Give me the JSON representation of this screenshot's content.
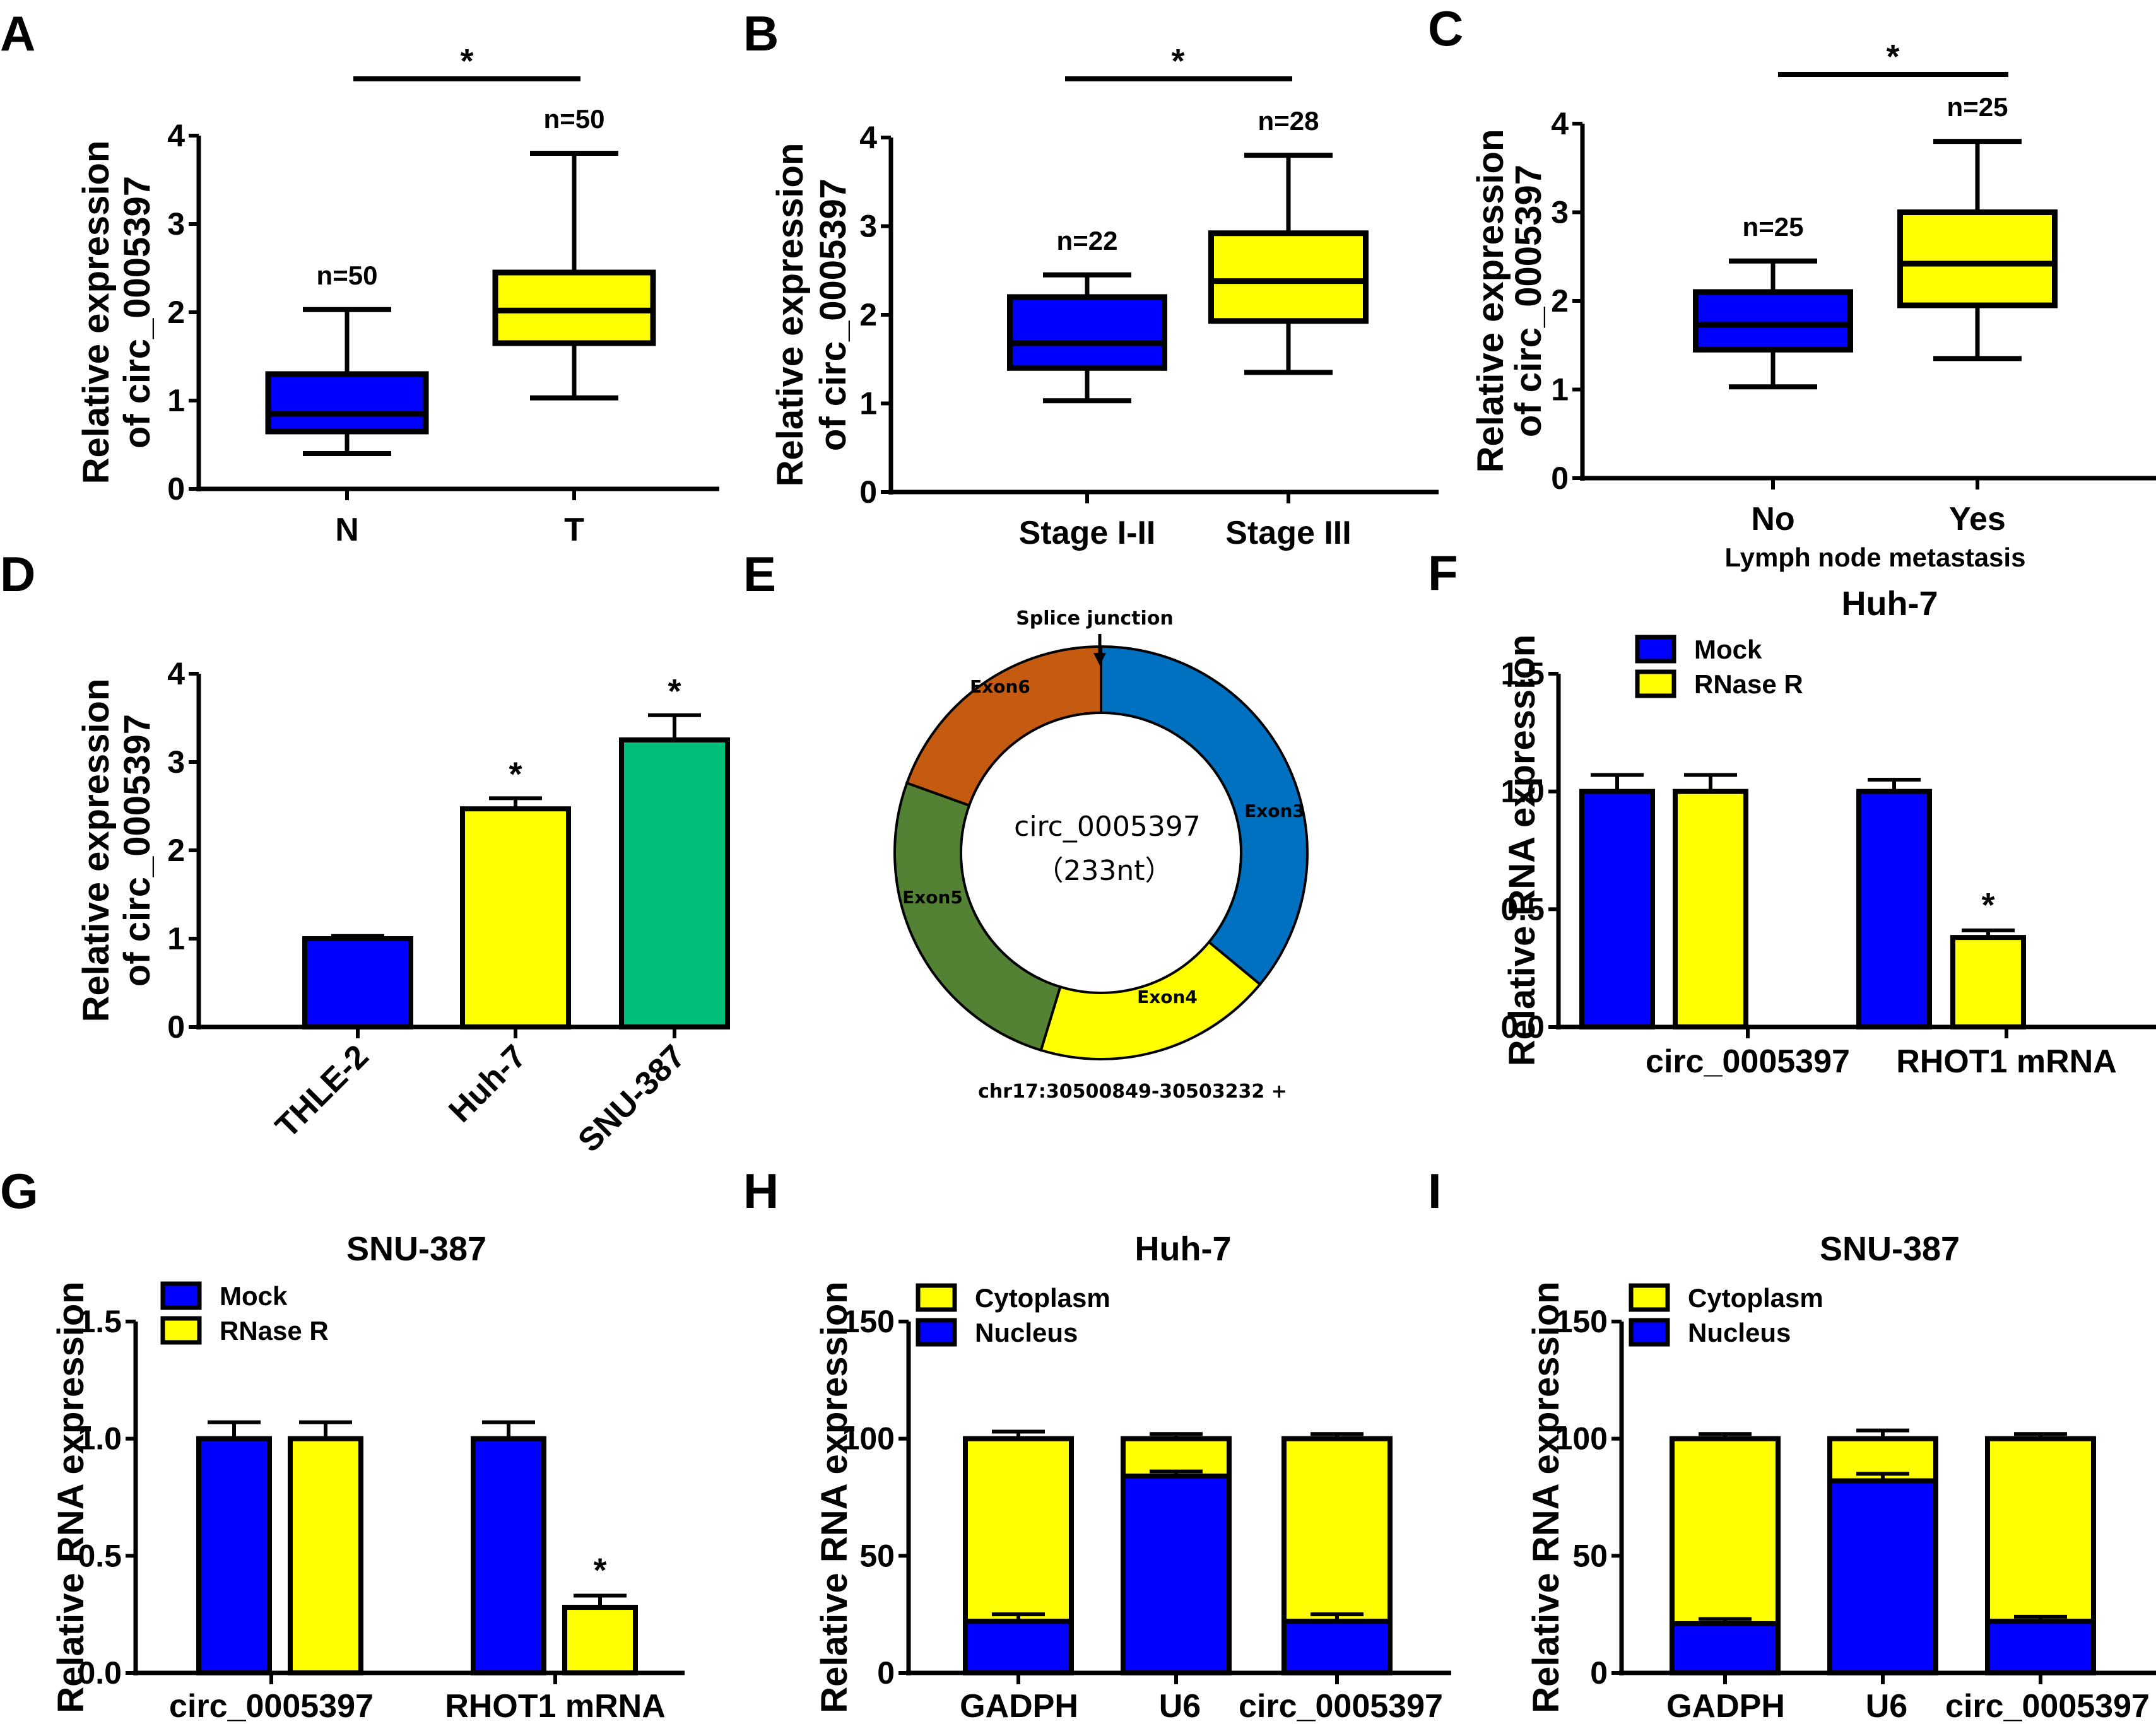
{
  "colors": {
    "blue": "#0000ff",
    "yellow": "#ffff00",
    "green": "#00bf78",
    "exon3": "#0070c0",
    "exon4": "#ffff00",
    "exon5": "#548235",
    "exon6": "#c55a11"
  },
  "chart_data": [
    {
      "panel": "A",
      "type": "box",
      "ylabel": [
        "Relative expression",
        "of circ_0005397"
      ],
      "ylim": [
        0,
        4
      ],
      "yticks": [
        "0",
        "1",
        "2",
        "3",
        "4"
      ],
      "categories": [
        "N",
        "T"
      ],
      "boxes": [
        {
          "label": "N",
          "n": "n=50",
          "color": "blue",
          "min": 0.4,
          "q1": 0.65,
          "median": 0.85,
          "q3": 1.3,
          "max": 2.03
        },
        {
          "label": "T",
          "n": "n=50",
          "color": "yellow",
          "min": 1.03,
          "q1": 1.65,
          "median": 2.02,
          "q3": 2.45,
          "max": 3.8
        }
      ],
      "significance": "*",
      "xlabel": ""
    },
    {
      "panel": "B",
      "type": "box",
      "ylabel": [
        "Relative expression",
        "of circ_0005397"
      ],
      "ylim": [
        0,
        4
      ],
      "yticks": [
        "0",
        "1",
        "2",
        "3",
        "4"
      ],
      "categories": [
        "Stage I-II",
        "Stage III"
      ],
      "boxes": [
        {
          "label": "Stage I-II",
          "n": "n=22",
          "color": "blue",
          "min": 1.03,
          "q1": 1.4,
          "median": 1.68,
          "q3": 2.2,
          "max": 2.45
        },
        {
          "label": "Stage III",
          "n": "n=28",
          "color": "yellow",
          "min": 1.35,
          "q1": 1.93,
          "median": 2.38,
          "q3": 2.92,
          "max": 3.8
        }
      ],
      "significance": "*",
      "xlabel": ""
    },
    {
      "panel": "C",
      "type": "box",
      "ylabel": [
        "Relative expression",
        "of circ_0005397"
      ],
      "ylim": [
        0,
        4
      ],
      "yticks": [
        "0",
        "1",
        "2",
        "3",
        "4"
      ],
      "categories": [
        "No",
        "Yes"
      ],
      "boxes": [
        {
          "label": "No",
          "n": "n=25",
          "color": "blue",
          "min": 1.03,
          "q1": 1.45,
          "median": 1.73,
          "q3": 2.1,
          "max": 2.45
        },
        {
          "label": "Yes",
          "n": "n=25",
          "color": "yellow",
          "min": 1.35,
          "q1": 1.95,
          "median": 2.42,
          "q3": 3.0,
          "max": 3.8
        }
      ],
      "significance": "*",
      "xlabel": "Lymph node metastasis"
    },
    {
      "panel": "D",
      "type": "bar",
      "ylabel": [
        "Relative expression",
        "of circ_0005397"
      ],
      "ylim": [
        0,
        4
      ],
      "yticks": [
        "0",
        "1",
        "2",
        "3",
        "4"
      ],
      "categories": [
        "THLE-2",
        "Huh-7",
        "SNU-387"
      ],
      "values": [
        1.0,
        2.47,
        3.25
      ],
      "errors": [
        0.03,
        0.12,
        0.28
      ],
      "colors": [
        "blue",
        "yellow",
        "green"
      ],
      "stars": [
        "",
        "*",
        "*"
      ]
    },
    {
      "panel": "E",
      "type": "pie",
      "subtype": "donut",
      "center_label": "circ_0005397",
      "center_sublabel": "（233nt）",
      "top_annotation": "Splice junction",
      "bottom_annotation": "chr17:30500849-30503232 +",
      "slices": [
        {
          "label": "Exon3",
          "fraction": 0.36,
          "color": "exon3"
        },
        {
          "label": "Exon4",
          "fraction": 0.187,
          "color": "exon4"
        },
        {
          "label": "Exon5",
          "fraction": 0.258,
          "color": "exon5"
        },
        {
          "label": "Exon6",
          "fraction": 0.195,
          "color": "exon6"
        }
      ]
    },
    {
      "panel": "F",
      "type": "bar",
      "title": "Huh-7",
      "ylabel": [
        "Relative RNA expression"
      ],
      "ylim": [
        0,
        1.5
      ],
      "yticks": [
        "0.0",
        "0.5",
        "1.0",
        "1.5"
      ],
      "categories": [
        "circ_0005397",
        "RHOT1 mRNA"
      ],
      "legend": [
        {
          "name": "Mock",
          "color": "blue"
        },
        {
          "name": "RNase R",
          "color": "yellow"
        }
      ],
      "legend_position": "top-left",
      "series": [
        {
          "name": "Mock",
          "values": [
            1.0,
            1.0
          ],
          "errors": [
            0.07,
            0.05
          ]
        },
        {
          "name": "RNase R",
          "values": [
            1.0,
            0.38
          ],
          "errors": [
            0.07,
            0.03
          ]
        }
      ],
      "stars": [
        [
          "",
          ""
        ],
        [
          "",
          "*"
        ]
      ]
    },
    {
      "panel": "G",
      "type": "bar",
      "title": "SNU-387",
      "ylabel": [
        "Relative RNA expression"
      ],
      "ylim": [
        0,
        1.5
      ],
      "yticks": [
        "0.0",
        "0.5",
        "1.0",
        "1.5"
      ],
      "categories": [
        "circ_0005397",
        "RHOT1 mRNA"
      ],
      "legend": [
        {
          "name": "Mock",
          "color": "blue"
        },
        {
          "name": "RNase R",
          "color": "yellow"
        }
      ],
      "legend_position": "top-left",
      "series": [
        {
          "name": "Mock",
          "values": [
            1.0,
            1.0
          ],
          "errors": [
            0.07,
            0.07
          ]
        },
        {
          "name": "RNase R",
          "values": [
            1.0,
            0.28
          ],
          "errors": [
            0.07,
            0.05
          ]
        }
      ],
      "stars": [
        [
          "",
          ""
        ],
        [
          "",
          "*"
        ]
      ]
    },
    {
      "panel": "H",
      "type": "bar",
      "subtype": "stacked",
      "title": "Huh-7",
      "ylabel": [
        "Relative RNA expression"
      ],
      "ylim": [
        0,
        150
      ],
      "yticks": [
        "0",
        "50",
        "100",
        "150"
      ],
      "categories": [
        "GADPH",
        "U6",
        "circ_0005397"
      ],
      "legend": [
        {
          "name": "Cytoplasm",
          "color": "yellow"
        },
        {
          "name": "Nucleus",
          "color": "blue"
        }
      ],
      "legend_position": "top-left",
      "series": [
        {
          "name": "Nucleus",
          "values": [
            22,
            84,
            22
          ],
          "errors": [
            3,
            2,
            3
          ]
        },
        {
          "name": "Cytoplasm",
          "values": [
            78,
            16,
            78
          ],
          "errors": [
            3,
            2,
            2
          ]
        }
      ]
    },
    {
      "panel": "I",
      "type": "bar",
      "subtype": "stacked",
      "title": "SNU-387",
      "ylabel": [
        "Relative RNA expression"
      ],
      "ylim": [
        0,
        150
      ],
      "yticks": [
        "0",
        "50",
        "100",
        "150"
      ],
      "categories": [
        "GADPH",
        "U6",
        "circ_0005397"
      ],
      "legend": [
        {
          "name": "Cytoplasm",
          "color": "yellow"
        },
        {
          "name": "Nucleus",
          "color": "blue"
        }
      ],
      "legend_position": "top-left",
      "series": [
        {
          "name": "Nucleus",
          "values": [
            21,
            82,
            22
          ],
          "errors": [
            2,
            3,
            2
          ]
        },
        {
          "name": "Cytoplasm",
          "values": [
            79,
            18,
            78
          ],
          "errors": [
            2,
            3.5,
            2
          ]
        }
      ]
    }
  ]
}
